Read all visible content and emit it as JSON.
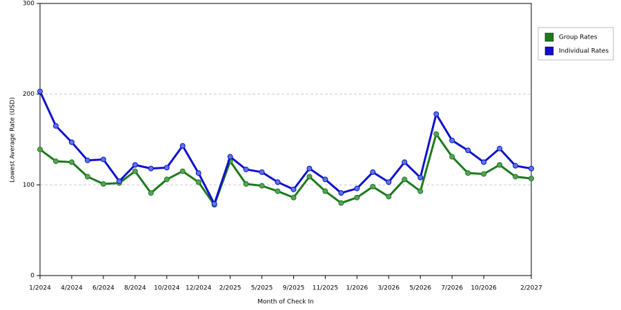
{
  "chart_data": {
    "type": "line",
    "x_label": "Month of Check In",
    "y_label": "Lowest Average Rate (USD)",
    "categories": [
      "1/2024",
      null,
      "4/2024",
      null,
      "6/2024",
      null,
      "8/2024",
      null,
      "10/2024",
      null,
      "12/2024",
      null,
      "2/2025",
      null,
      "5/2025",
      null,
      "9/2025",
      null,
      "11/2025",
      null,
      "1/2026",
      null,
      "3/2026",
      null,
      "5/2026",
      null,
      "7/2026",
      null,
      "10/2026",
      null,
      null,
      "2/2027"
    ],
    "series": [
      {
        "name": "Group Rates",
        "color": "#1a7a1a",
        "marker_color": "#5aa05a",
        "values": [
          139,
          126,
          125,
          109,
          101,
          102,
          115,
          91,
          106,
          115,
          103,
          78,
          126,
          101,
          99,
          93,
          86,
          109,
          93,
          80,
          86,
          98,
          87,
          106,
          93,
          156,
          131,
          113,
          112,
          122,
          109,
          107
        ]
      },
      {
        "name": "Individual Rates",
        "color": "#1010cc",
        "marker_color": "#5a78e0",
        "values": [
          203,
          165,
          147,
          127,
          128,
          104,
          122,
          118,
          119,
          143,
          113,
          79,
          131,
          117,
          114,
          103,
          95,
          118,
          106,
          91,
          96,
          114,
          103,
          125,
          108,
          178,
          149,
          138,
          125,
          140,
          121,
          118
        ]
      }
    ],
    "ylim": [
      0,
      300
    ],
    "yticks": [
      0,
      100,
      200,
      300
    ],
    "grid": true,
    "legend": "right"
  }
}
